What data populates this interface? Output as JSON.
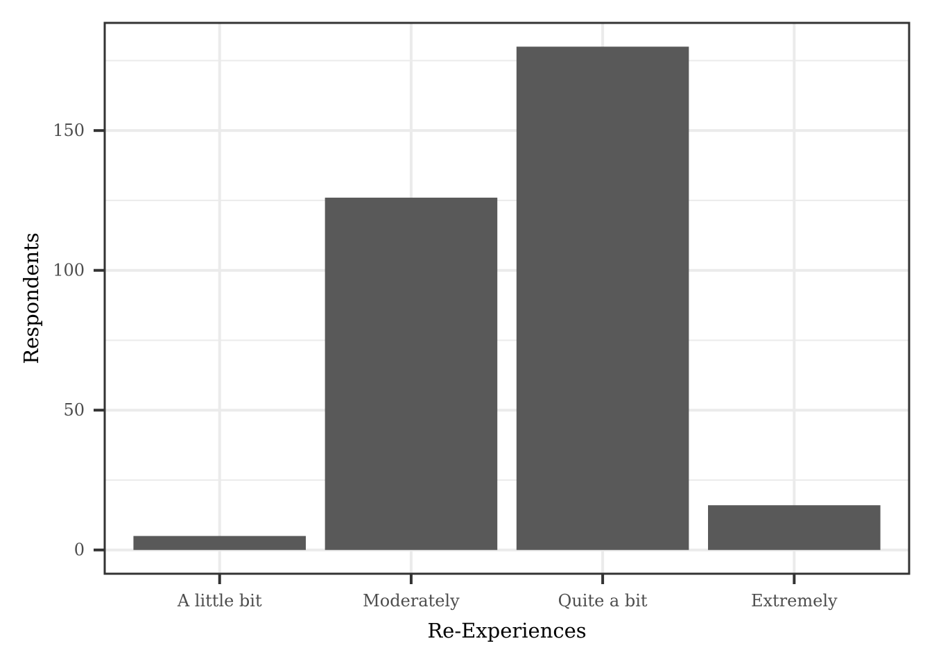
{
  "chart_data": {
    "type": "bar",
    "categories": [
      "A little bit",
      "Moderately",
      "Quite a bit",
      "Extremely"
    ],
    "values": [
      5,
      126,
      180,
      16
    ],
    "title": "",
    "xlabel": "Re-Experiences",
    "ylabel": "Respondents",
    "ylim": [
      -8.5,
      188.5
    ],
    "yticks": [
      0,
      50,
      100,
      150
    ],
    "grid": true,
    "bar_color": "#595959",
    "grid_color": "#ebebeb",
    "frame_color": "#333333"
  }
}
